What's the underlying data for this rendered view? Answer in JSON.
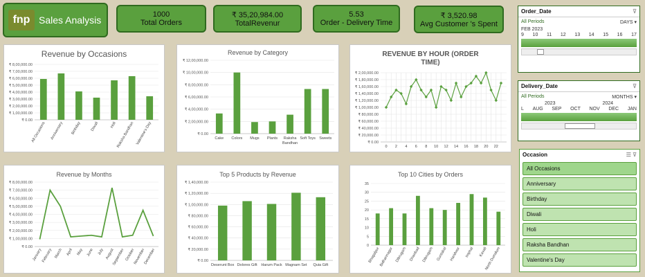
{
  "brand": {
    "logo_text": "fnp",
    "title": "Sales Analysis"
  },
  "kpis": [
    {
      "value": "1000",
      "label": "Total Orders"
    },
    {
      "value": "₹ 35,20,984.00",
      "label": "TotalRevenur"
    },
    {
      "value": "5.53",
      "label": "Order - Delivery Time"
    },
    {
      "value": "₹ 3,520.98",
      "label": "Avg Customer 's Spent"
    }
  ],
  "colors": {
    "bar": "#5aa03e",
    "tile": "#5aa03e"
  },
  "slicers": {
    "order_date": {
      "title": "Order_Date",
      "periods": "All Periods",
      "unit": "DAYS",
      "month": "FEB 2023",
      "ticks": [
        "9",
        "10",
        "11",
        "12",
        "13",
        "14",
        "15",
        "16",
        "17"
      ]
    },
    "delivery_date": {
      "title": "Delivery_Date",
      "periods": "All Periods",
      "unit": "MONTHS",
      "year1": "2023",
      "year2": "2024",
      "ticks": [
        "L",
        "AUG",
        "SEP",
        "OCT",
        "NOV",
        "DEC",
        "JAN"
      ]
    },
    "occasion": {
      "title": "Occasion",
      "items": [
        "All Occasions",
        "Anniversary",
        "Birthday",
        "Diwali",
        "Holi",
        "Raksha Bandhan",
        "Valentine's Day"
      ]
    }
  },
  "chart_data": [
    {
      "id": "occ",
      "type": "bar",
      "title": "Revenue by Occasions",
      "categories": [
        "All Occasions",
        "Anniversary",
        "Birthday",
        "Diwali",
        "Holi",
        "Raksha Bandhan",
        "Valentine's Day"
      ],
      "values": [
        590000,
        670000,
        410000,
        320000,
        570000,
        630000,
        340000
      ],
      "ylim": [
        0,
        800000
      ],
      "yticks": [
        0,
        100000,
        200000,
        300000,
        400000,
        500000,
        600000,
        700000,
        800000
      ],
      "ytick_labels": [
        "₹ 0.00",
        "₹ 1,00,000.00",
        "₹ 2,00,000.00",
        "₹ 3,00,000.00",
        "₹ 4,00,000.00",
        "₹ 5,00,000.00",
        "₹ 6,00,000.00",
        "₹ 7,00,000.00",
        "₹ 8,00,000.00"
      ]
    },
    {
      "id": "cat",
      "type": "bar",
      "title": "Revenue by Category",
      "categories": [
        "Cake",
        "Colors",
        "Mugs",
        "Plants",
        "Raksha Bandhan",
        "Soft Toys",
        "Sweets"
      ],
      "values": [
        330000,
        1000000,
        190000,
        200000,
        310000,
        730000,
        730000
      ],
      "ylim": [
        0,
        1200000
      ],
      "yticks": [
        0,
        200000,
        400000,
        600000,
        800000,
        1000000,
        1200000
      ],
      "ytick_labels": [
        "₹ 0.00",
        "₹ 2,00,000.00",
        "₹ 4,00,000.00",
        "₹ 6,00,000.00",
        "₹ 8,00,000.00",
        "₹ 10,00,000.00",
        "₹ 12,00,000.00"
      ]
    },
    {
      "id": "hour",
      "type": "line",
      "title": "REVENUE BY HOUR (ORDER TIME)",
      "x": [
        0,
        1,
        2,
        3,
        4,
        5,
        6,
        7,
        8,
        9,
        10,
        11,
        12,
        13,
        14,
        15,
        16,
        17,
        18,
        19,
        20,
        21,
        22,
        23
      ],
      "values": [
        100000,
        130000,
        150000,
        140000,
        110000,
        160000,
        180000,
        150000,
        130000,
        150000,
        100000,
        160000,
        150000,
        120000,
        170000,
        130000,
        160000,
        170000,
        190000,
        170000,
        200000,
        150000,
        120000,
        170000
      ],
      "ylim": [
        0,
        200000
      ],
      "yticks": [
        0,
        20000,
        40000,
        60000,
        80000,
        100000,
        120000,
        140000,
        160000,
        180000,
        200000
      ],
      "ytick_labels": [
        "₹ 0.00",
        "₹ 20,000.00",
        "₹ 40,000.00",
        "₹ 60,000.00",
        "₹ 80,000.00",
        "₹ 1,00,000.00",
        "₹ 1,20,000.00",
        "₹ 1,40,000.00",
        "₹ 1,60,000.00",
        "₹ 1,80,000.00",
        "₹ 2,00,000.00"
      ],
      "xtick_labels": [
        "0",
        "2",
        "4",
        "6",
        "8",
        "10",
        "12",
        "14",
        "16",
        "18",
        "20",
        "22"
      ],
      "xtick_values": [
        0,
        2,
        4,
        6,
        8,
        10,
        12,
        14,
        16,
        18,
        20,
        22
      ]
    },
    {
      "id": "month",
      "type": "line",
      "title": "Revenue by Months",
      "categories": [
        "January",
        "February",
        "March",
        "April",
        "May",
        "June",
        "July",
        "August",
        "September",
        "October",
        "November",
        "December"
      ],
      "values": [
        90000,
        700000,
        500000,
        120000,
        130000,
        140000,
        120000,
        730000,
        120000,
        140000,
        450000,
        130000
      ],
      "ylim": [
        0,
        800000
      ],
      "yticks": [
        0,
        100000,
        200000,
        300000,
        400000,
        500000,
        600000,
        700000,
        800000
      ],
      "ytick_labels": [
        "₹ 0.00",
        "₹ 1,00,000.00",
        "₹ 2,00,000.00",
        "₹ 3,00,000.00",
        "₹ 4,00,000.00",
        "₹ 5,00,000.00",
        "₹ 6,00,000.00",
        "₹ 7,00,000.00",
        "₹ 8,00,000.00"
      ]
    },
    {
      "id": "prod",
      "type": "bar",
      "title": "Top 5 Products by Revenue",
      "categories": [
        "Deserunt Box",
        "Dolores Gift",
        "Harum Pack",
        "Magnam Set",
        "Quia Gift"
      ],
      "values": [
        98000,
        106000,
        101000,
        121000,
        113000
      ],
      "ylim": [
        0,
        140000
      ],
      "yticks": [
        0,
        20000,
        40000,
        60000,
        80000,
        100000,
        120000,
        140000
      ],
      "ytick_labels": [
        "₹ 0.00",
        "₹ 20,000.00",
        "₹ 40,000.00",
        "₹ 60,000.00",
        "₹ 80,000.00",
        "₹ 1,00,000.00",
        "₹ 1,20,000.00",
        "₹ 1,40,000.00"
      ]
    },
    {
      "id": "city",
      "type": "bar",
      "title": "Top 10 Cities by Orders",
      "categories": [
        "Bhagalpur",
        "Bidhannagar",
        "Dibrugarh",
        "Dhanbad",
        "Dibrugarh",
        "Guntakal",
        "Haridwar",
        "Imphal",
        "Kavali",
        "North Dumdum"
      ],
      "values": [
        18,
        21,
        18,
        28,
        21,
        20,
        24,
        29,
        27,
        19
      ],
      "ylim": [
        0,
        35
      ],
      "yticks": [
        0,
        5,
        10,
        15,
        20,
        25,
        30,
        35
      ],
      "ytick_labels": [
        "0",
        "5",
        "10",
        "15",
        "20",
        "25",
        "30",
        "35"
      ]
    }
  ]
}
